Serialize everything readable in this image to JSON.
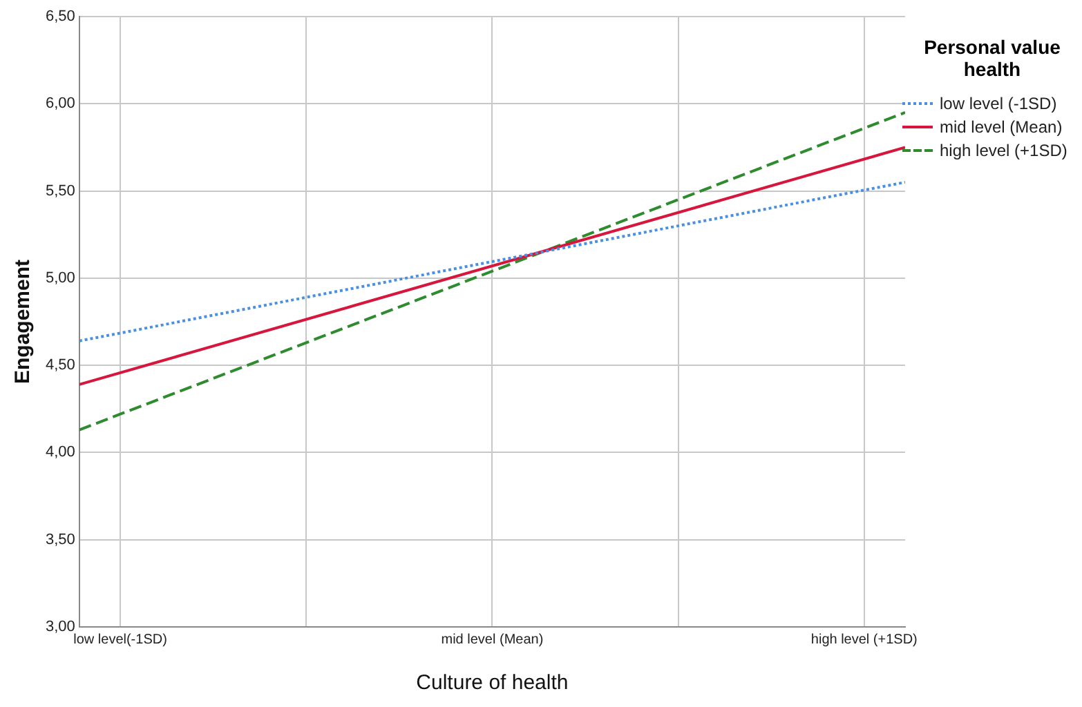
{
  "chart_data": {
    "type": "line",
    "xlabel": "Culture of health",
    "ylabel": "Engagement",
    "legend_title": "Personal value health",
    "legend": "right",
    "grid": true,
    "xlim": [
      -1.11,
      1.11
    ],
    "xticks": [
      {
        "value": -1,
        "label": "low level(-1SD)"
      },
      {
        "value": -0.5,
        "label": null
      },
      {
        "value": 0,
        "label": "mid level (Mean)"
      },
      {
        "value": 0.5,
        "label": null
      },
      {
        "value": 1,
        "label": "high level (+1SD)"
      }
    ],
    "ylim": [
      3,
      6.5
    ],
    "yticks": [
      {
        "value": 3,
        "label": "3,00"
      },
      {
        "value": 3.5,
        "label": "3,50"
      },
      {
        "value": 4,
        "label": "4,00"
      },
      {
        "value": 4.5,
        "label": "4,50"
      },
      {
        "value": 5,
        "label": "5,00"
      },
      {
        "value": 5.5,
        "label": "5,50"
      },
      {
        "value": 6,
        "label": "6,00"
      },
      {
        "value": 6.5,
        "label": "6,50"
      }
    ],
    "x": [
      -1.11,
      1.11
    ],
    "series": [
      {
        "name": "low level (-1SD)",
        "color": "#4a90e2",
        "line_style": "dotted",
        "values": [
          4.64,
          5.55
        ]
      },
      {
        "name": "mid level (Mean)",
        "color": "#d6163c",
        "line_style": "solid",
        "values": [
          4.39,
          5.75
        ]
      },
      {
        "name": "high level (+1SD)",
        "color": "#2e8b2e",
        "line_style": "dashed",
        "values": [
          4.13,
          5.95
        ]
      }
    ]
  }
}
